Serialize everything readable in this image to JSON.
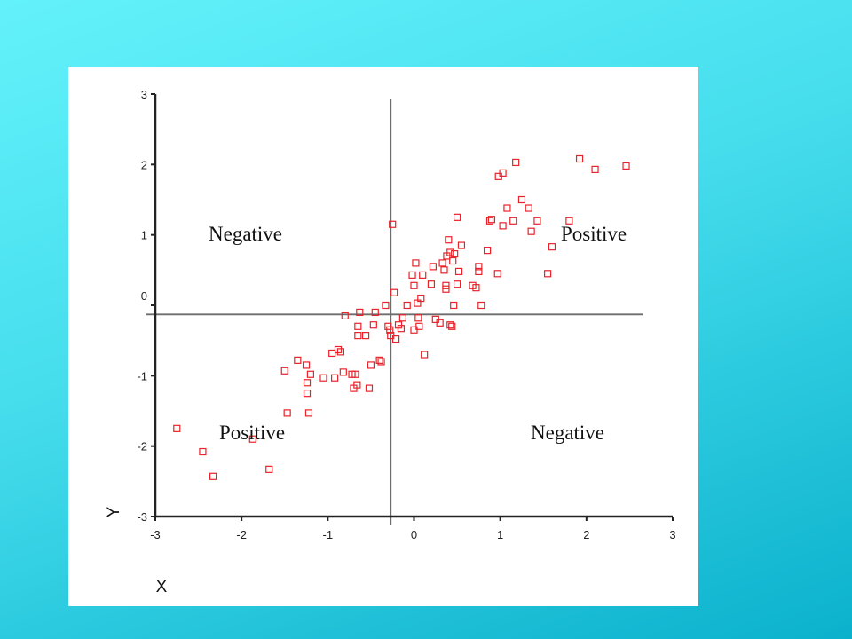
{
  "chart_data": {
    "type": "scatter",
    "title": "",
    "xlabel": "X",
    "ylabel": "Y",
    "xlim": [
      -3,
      3
    ],
    "ylim": [
      -3,
      3
    ],
    "xticks": [
      -3,
      -2,
      -1,
      0,
      1,
      2,
      3
    ],
    "yticks": [
      -3,
      -2,
      -1,
      0,
      1,
      2,
      3
    ],
    "grid": false,
    "divider_x": -0.27,
    "divider_y": -0.13,
    "marker_color": "#e8232a",
    "quadrant_labels": {
      "top_left": "Negative",
      "top_right": "Positive",
      "bottom_left": "Positive",
      "bottom_right": "Negative"
    },
    "points": [
      [
        -2.75,
        -1.75
      ],
      [
        -2.45,
        -2.08
      ],
      [
        -2.33,
        -2.43
      ],
      [
        -1.87,
        -1.9
      ],
      [
        -1.68,
        -2.33
      ],
      [
        -1.5,
        -0.93
      ],
      [
        -1.47,
        -1.53
      ],
      [
        -1.35,
        -0.78
      ],
      [
        -1.25,
        -0.85
      ],
      [
        -1.24,
        -1.1
      ],
      [
        -1.24,
        -1.25
      ],
      [
        -1.22,
        -1.53
      ],
      [
        -1.2,
        -0.98
      ],
      [
        -1.05,
        -1.03
      ],
      [
        -0.95,
        -0.68
      ],
      [
        -0.92,
        -1.03
      ],
      [
        -0.88,
        -0.63
      ],
      [
        -0.85,
        -0.66
      ],
      [
        -0.82,
        -0.95
      ],
      [
        -0.8,
        -0.15
      ],
      [
        -0.72,
        -0.98
      ],
      [
        -0.7,
        -1.18
      ],
      [
        -0.68,
        -0.98
      ],
      [
        -0.66,
        -1.13
      ],
      [
        -0.65,
        -0.3
      ],
      [
        -0.65,
        -0.43
      ],
      [
        -0.63,
        -0.1
      ],
      [
        -0.56,
        -0.43
      ],
      [
        -0.52,
        -1.18
      ],
      [
        -0.5,
        -0.85
      ],
      [
        -0.47,
        -0.28
      ],
      [
        -0.45,
        -0.1
      ],
      [
        -0.4,
        -0.78
      ],
      [
        -0.38,
        -0.8
      ],
      [
        -0.33,
        0.0
      ],
      [
        -0.3,
        -0.3
      ],
      [
        -0.28,
        -0.35
      ],
      [
        -0.27,
        -0.43
      ],
      [
        -0.25,
        1.15
      ],
      [
        -0.23,
        0.18
      ],
      [
        -0.21,
        -0.48
      ],
      [
        -0.18,
        -0.28
      ],
      [
        -0.15,
        -0.33
      ],
      [
        -0.13,
        -0.18
      ],
      [
        -0.08,
        0.0
      ],
      [
        -0.02,
        0.43
      ],
      [
        0.0,
        -0.35
      ],
      [
        0.0,
        0.28
      ],
      [
        0.02,
        0.6
      ],
      [
        0.04,
        0.03
      ],
      [
        0.05,
        -0.18
      ],
      [
        0.06,
        -0.3
      ],
      [
        0.08,
        0.1
      ],
      [
        0.1,
        0.43
      ],
      [
        0.12,
        -0.7
      ],
      [
        0.2,
        0.3
      ],
      [
        0.22,
        0.55
      ],
      [
        0.25,
        -0.2
      ],
      [
        0.3,
        -0.25
      ],
      [
        0.33,
        0.6
      ],
      [
        0.35,
        0.5
      ],
      [
        0.37,
        0.28
      ],
      [
        0.37,
        0.23
      ],
      [
        0.38,
        0.7
      ],
      [
        0.4,
        0.93
      ],
      [
        0.42,
        0.75
      ],
      [
        0.42,
        -0.28
      ],
      [
        0.44,
        -0.3
      ],
      [
        0.45,
        0.63
      ],
      [
        0.46,
        0.0
      ],
      [
        0.47,
        0.73
      ],
      [
        0.5,
        0.3
      ],
      [
        0.52,
        0.48
      ],
      [
        0.55,
        0.85
      ],
      [
        0.5,
        1.25
      ],
      [
        0.68,
        0.28
      ],
      [
        0.72,
        0.25
      ],
      [
        0.75,
        0.48
      ],
      [
        0.75,
        0.55
      ],
      [
        0.78,
        0.0
      ],
      [
        0.85,
        0.78
      ],
      [
        0.88,
        1.2
      ],
      [
        0.9,
        1.22
      ],
      [
        0.97,
        0.45
      ],
      [
        0.98,
        1.83
      ],
      [
        1.03,
        1.88
      ],
      [
        1.03,
        1.13
      ],
      [
        1.08,
        1.38
      ],
      [
        1.15,
        1.2
      ],
      [
        1.18,
        2.03
      ],
      [
        1.25,
        1.5
      ],
      [
        1.33,
        1.38
      ],
      [
        1.36,
        1.05
      ],
      [
        1.43,
        1.2
      ],
      [
        1.55,
        0.45
      ],
      [
        1.6,
        0.83
      ],
      [
        1.8,
        1.2
      ],
      [
        1.92,
        2.08
      ],
      [
        2.1,
        1.93
      ],
      [
        2.46,
        1.98
      ]
    ]
  }
}
